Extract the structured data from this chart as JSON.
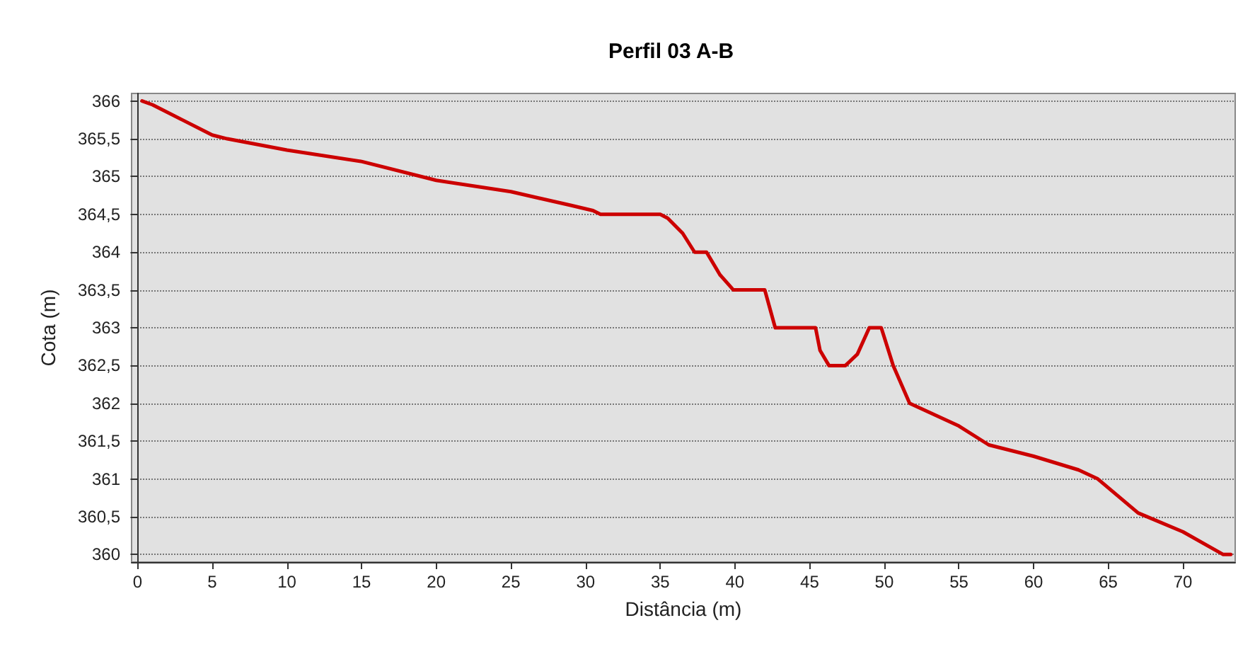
{
  "chart_data": {
    "type": "line",
    "title": "Perfil 03 A-B",
    "xlabel": "Distância (m)",
    "ylabel": "Cota (m)",
    "x": [
      0.3,
      1,
      3,
      5,
      6,
      10,
      15,
      20,
      25,
      29,
      30.5,
      31,
      35,
      35.5,
      36.5,
      37.3,
      38.1,
      39,
      39.9,
      42,
      42.7,
      45.4,
      45.7,
      46.3,
      47.4,
      48.2,
      49,
      49.8,
      50.6,
      51.7,
      55,
      57,
      60,
      63,
      64.3,
      67,
      70,
      72.7,
      73.2
    ],
    "series": [
      {
        "color": "#cc0000",
        "values": [
          366,
          365.95,
          365.75,
          365.55,
          365.5,
          365.35,
          365.2,
          364.95,
          364.8,
          364.62,
          364.55,
          364.5,
          364.5,
          364.45,
          364.25,
          364,
          364,
          363.7,
          363.5,
          363.5,
          363,
          363,
          362.7,
          362.5,
          362.5,
          362.65,
          363,
          363,
          362.5,
          362,
          361.7,
          361.45,
          361.3,
          361.12,
          361,
          360.55,
          360.3,
          360,
          360
        ]
      }
    ],
    "xlim": [
      -0.4,
      73.5
    ],
    "xticks": [
      0,
      5,
      10,
      15,
      20,
      25,
      30,
      35,
      40,
      45,
      50,
      55,
      60,
      65,
      70
    ],
    "ylim": [
      359.9,
      366.1
    ],
    "yticks": [
      {
        "value": 360,
        "label": "360"
      },
      {
        "value": 360.5,
        "label": "360,5"
      },
      {
        "value": 361,
        "label": "361"
      },
      {
        "value": 361.5,
        "label": "361,5"
      },
      {
        "value": 362,
        "label": "362"
      },
      {
        "value": 362.5,
        "label": "362,5"
      },
      {
        "value": 363,
        "label": "363"
      },
      {
        "value": 363.5,
        "label": "363,5"
      },
      {
        "value": 364,
        "label": "364"
      },
      {
        "value": 364.5,
        "label": "364,5"
      },
      {
        "value": 365,
        "label": "365"
      },
      {
        "value": 365.5,
        "label": "365,5"
      },
      {
        "value": 366,
        "label": "366"
      }
    ],
    "grid": "y",
    "marker": "none",
    "line_style": "solid"
  }
}
